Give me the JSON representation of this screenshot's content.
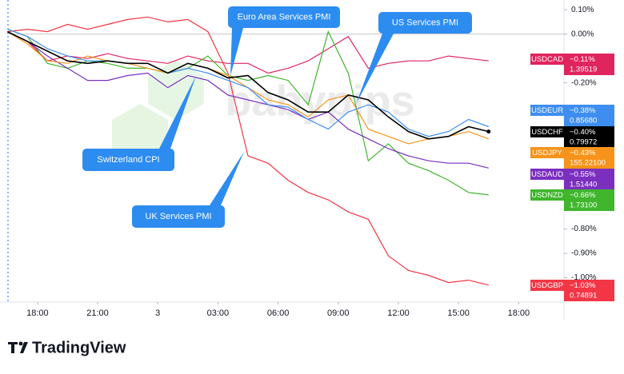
{
  "chart_data": {
    "type": "line",
    "x": [
      -1.5,
      -0.5,
      0.5,
      1.5,
      2.5,
      3.5,
      4.5,
      5.5,
      6.5,
      7.5,
      8.5,
      9.5,
      10.5,
      11.5,
      12.5,
      13.5,
      14.5,
      15.5,
      16.5,
      17.5,
      18.5,
      19.5,
      20.5,
      21.5,
      22.5
    ],
    "xlim": [
      -1.55,
      26.26
    ],
    "xticks": [
      {
        "value": 0,
        "label": "18:00"
      },
      {
        "value": 3,
        "label": "21:00"
      },
      {
        "value": 6,
        "label": "3"
      },
      {
        "value": 9,
        "label": "03:00"
      },
      {
        "value": 12,
        "label": "06:00"
      },
      {
        "value": 15,
        "label": "09:00"
      },
      {
        "value": 18,
        "label": "12:00"
      },
      {
        "value": 21,
        "label": "15:00"
      },
      {
        "value": 24,
        "label": "18:00"
      }
    ],
    "ylim": [
      -1.1,
      0.14
    ],
    "yticks": [
      {
        "value": 0.1,
        "label": "0.10%"
      },
      {
        "value": 0,
        "label": "0.00%"
      },
      {
        "value": -0.2,
        "label": "-0.20%"
      },
      {
        "value": -0.8,
        "label": "-0.80%"
      },
      {
        "value": -0.9,
        "label": "-0.90%"
      },
      {
        "value": -1.0,
        "label": "-1.00%"
      }
    ],
    "series": [
      {
        "name": "USDCAD",
        "color": "#e0245e",
        "end_label": "−0.11%",
        "price": "1.39519",
        "values": [
          0.01,
          -0.03,
          -0.11,
          -0.09,
          -0.1,
          -0.08,
          -0.1,
          -0.11,
          -0.12,
          -0.09,
          -0.11,
          -0.12,
          -0.12,
          -0.16,
          -0.14,
          -0.11,
          -0.06,
          -0.01,
          -0.14,
          -0.12,
          -0.11,
          -0.11,
          -0.09,
          -0.1,
          -0.11
        ]
      },
      {
        "name": "USDEUR",
        "color": "#3d8ef0",
        "end_label": "−0.38%",
        "price": "0.85680",
        "values": [
          0.02,
          -0.01,
          -0.06,
          -0.09,
          -0.11,
          -0.11,
          -0.12,
          -0.12,
          -0.16,
          -0.14,
          -0.16,
          -0.19,
          -0.22,
          -0.29,
          -0.3,
          -0.35,
          -0.39,
          -0.32,
          -0.29,
          -0.32,
          -0.39,
          -0.42,
          -0.4,
          -0.35,
          -0.38
        ]
      },
      {
        "name": "USDCHF",
        "color": "#000000",
        "end_label": "−0.40%",
        "price": "0.79972",
        "values": [
          0.01,
          -0.03,
          -0.07,
          -0.11,
          -0.12,
          -0.11,
          -0.12,
          -0.12,
          -0.16,
          -0.12,
          -0.14,
          -0.18,
          -0.17,
          -0.24,
          -0.27,
          -0.32,
          -0.32,
          -0.25,
          -0.27,
          -0.34,
          -0.4,
          -0.43,
          -0.42,
          -0.38,
          -0.4
        ]
      },
      {
        "name": "USDJPY",
        "color": "#f7931a",
        "end_label": "−0.43%",
        "price": "155.22100",
        "values": [
          0.01,
          -0.04,
          -0.11,
          -0.12,
          -0.09,
          -0.11,
          -0.12,
          -0.14,
          -0.16,
          -0.12,
          -0.14,
          -0.17,
          -0.22,
          -0.27,
          -0.29,
          -0.34,
          -0.27,
          -0.25,
          -0.39,
          -0.42,
          -0.45,
          -0.43,
          -0.42,
          -0.4,
          -0.43
        ]
      },
      {
        "name": "USDAUD",
        "color": "#7b2fbf",
        "end_label": "−0.55%",
        "price": "1.51440",
        "values": [
          0.01,
          -0.03,
          -0.09,
          -0.14,
          -0.19,
          -0.19,
          -0.17,
          -0.16,
          -0.22,
          -0.17,
          -0.19,
          -0.25,
          -0.27,
          -0.29,
          -0.31,
          -0.35,
          -0.32,
          -0.39,
          -0.43,
          -0.47,
          -0.5,
          -0.52,
          -0.53,
          -0.53,
          -0.55
        ]
      },
      {
        "name": "USDNZD",
        "color": "#3fb62c",
        "end_label": "−0.66%",
        "price": "1.73100",
        "values": [
          0.02,
          -0.01,
          -0.12,
          -0.14,
          -0.11,
          -0.12,
          -0.14,
          -0.14,
          -0.16,
          -0.14,
          -0.09,
          -0.17,
          -0.19,
          -0.17,
          -0.19,
          -0.29,
          0.01,
          -0.16,
          -0.52,
          -0.45,
          -0.53,
          -0.56,
          -0.6,
          -0.65,
          -0.66
        ]
      },
      {
        "name": "USDGBP",
        "color": "#f23645",
        "end_label": "−1.03%",
        "price": "0.74891",
        "values": [
          0.01,
          0.02,
          0.01,
          0.04,
          0.02,
          0.04,
          0.06,
          0.07,
          0.05,
          0.06,
          0.01,
          -0.16,
          -0.5,
          -0.53,
          -0.6,
          -0.65,
          -0.68,
          -0.73,
          -0.76,
          -0.91,
          -0.97,
          -0.99,
          -1.02,
          -1.01,
          -1.03
        ]
      }
    ],
    "annotations": [
      "Euro Area Services PMI",
      "US Services PMI",
      "Switzerland CPI",
      "UK Services PMI"
    ],
    "watermark": "babypips",
    "brand": "TradingView"
  }
}
